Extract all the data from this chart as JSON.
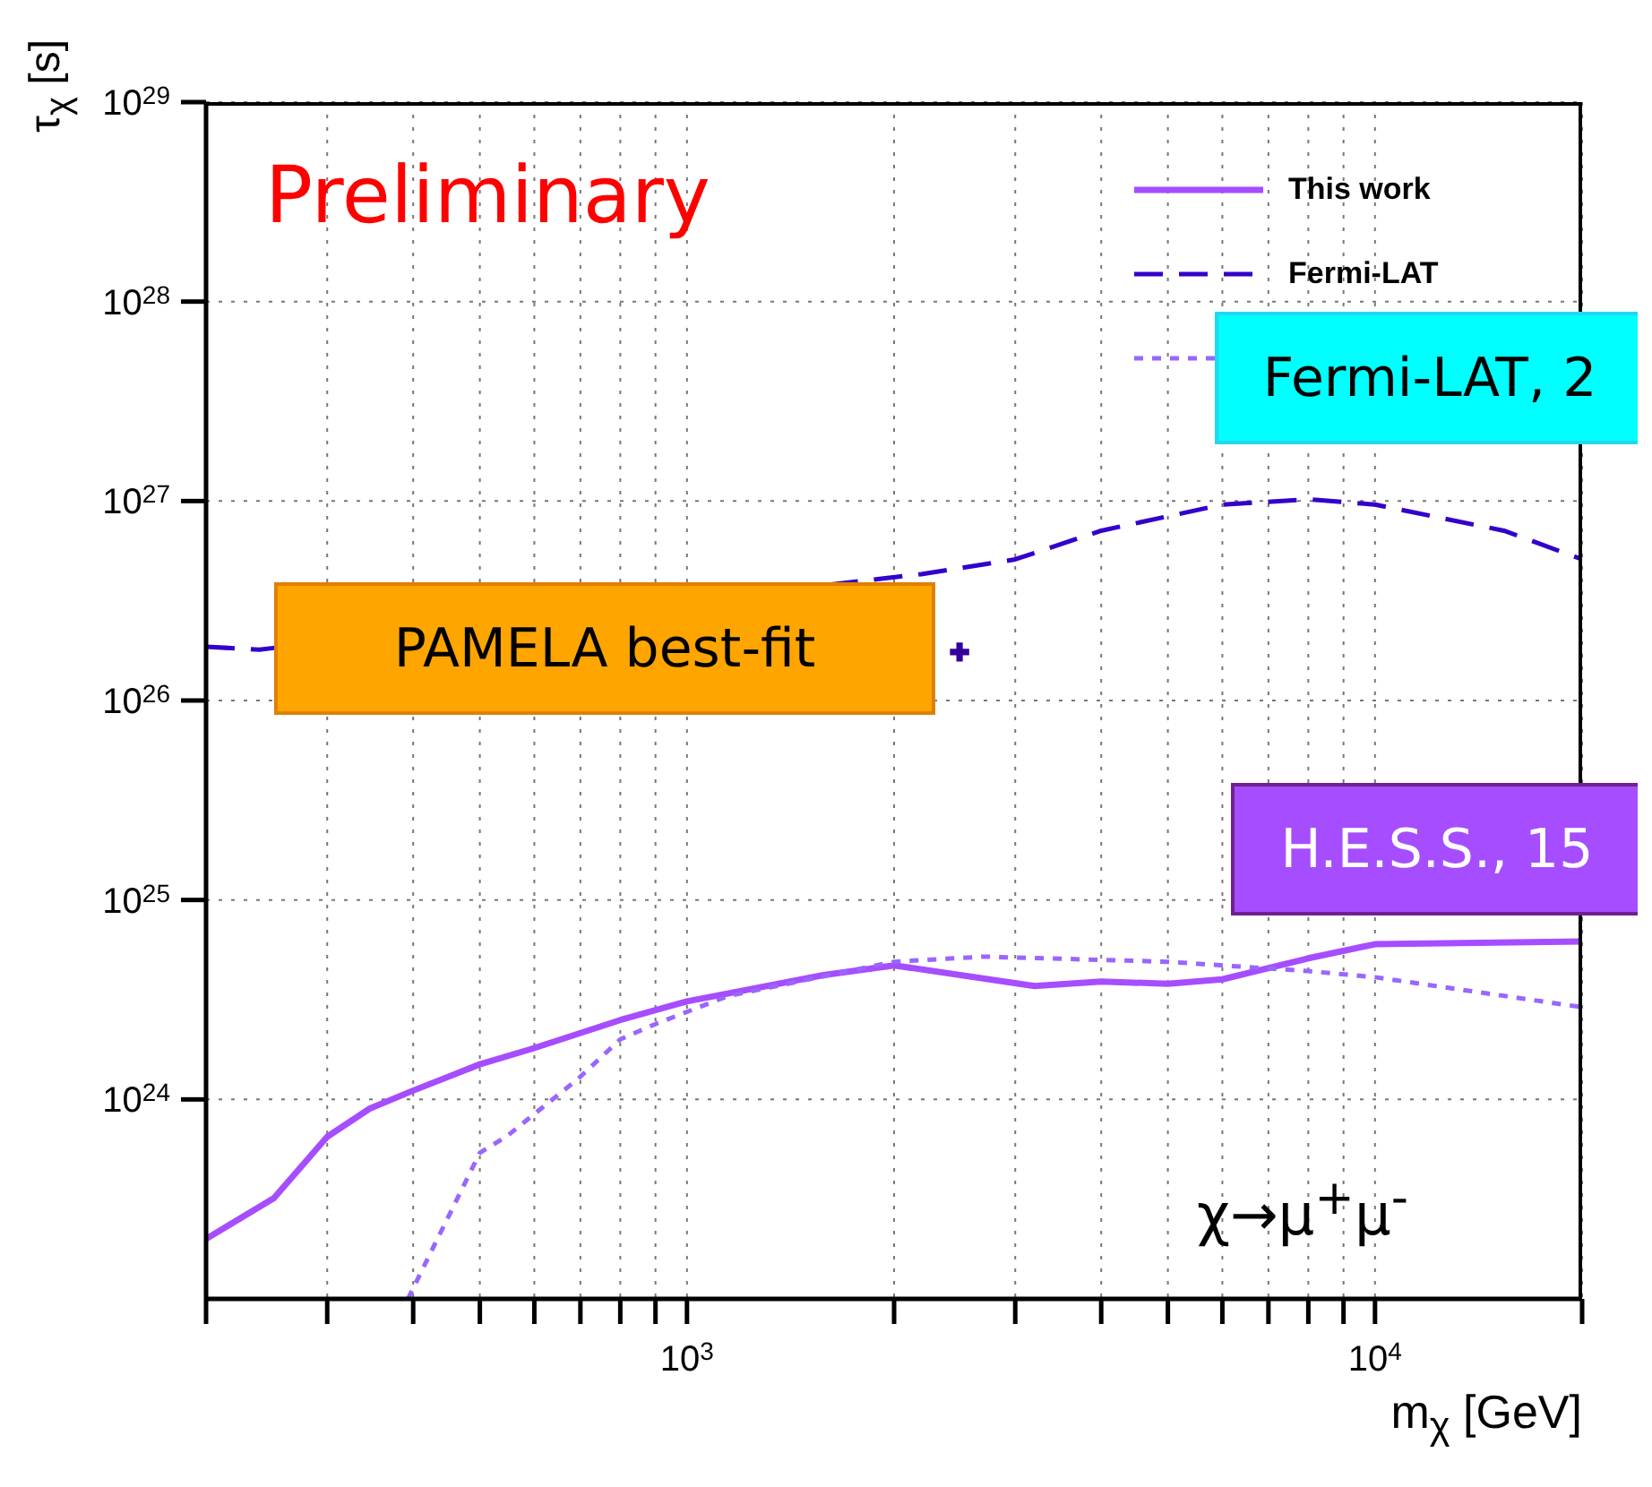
{
  "chart_data": {
    "type": "line",
    "xlabel": "m$_{χ}$ [GeV]",
    "ylabel": "τ$_{χ}$ [s]",
    "log": "xy",
    "grid": true,
    "legend": "top right",
    "xlim": [
      200,
      20000
    ],
    "ylim": [
      1e+23,
      1e+29
    ],
    "xticks": [
      {
        "value": 200,
        "label": null
      },
      {
        "value": 300,
        "label": null
      },
      {
        "value": 400,
        "label": null
      },
      {
        "value": 500,
        "label": null
      },
      {
        "value": 600,
        "label": null
      },
      {
        "value": 700,
        "label": null
      },
      {
        "value": 800,
        "label": null
      },
      {
        "value": 900,
        "label": null
      },
      {
        "value": 1000,
        "label": "10$^{3}$"
      },
      {
        "value": 2000,
        "label": null
      },
      {
        "value": 3000,
        "label": null
      },
      {
        "value": 4000,
        "label": null
      },
      {
        "value": 5000,
        "label": null
      },
      {
        "value": 6000,
        "label": null
      },
      {
        "value": 7000,
        "label": null
      },
      {
        "value": 8000,
        "label": null
      },
      {
        "value": 9000,
        "label": null
      },
      {
        "value": 10000,
        "label": "10$^{4}$"
      },
      {
        "value": 20000,
        "label": null
      }
    ],
    "yticks": [
      {
        "value": 1e+24,
        "label": "10$^{24}$"
      },
      {
        "value": 1e+25,
        "label": "10$^{25}$"
      },
      {
        "value": 1e+26,
        "label": "10$^{26}$"
      },
      {
        "value": 1e+27,
        "label": "10$^{27}$"
      },
      {
        "value": 1e+28,
        "label": "10$^{28}$"
      },
      {
        "value": 1e+29,
        "label": "10$^{29}$"
      }
    ],
    "series": [
      {
        "name": "This work",
        "color": "#a64dff",
        "line_style": "solid",
        "marker": "none",
        "x": [
          200,
          251,
          300,
          346,
          398,
          500,
          597,
          800,
          1000,
          1580,
          2000,
          3200,
          4000,
          5000,
          6000,
          8000,
          10000,
          20000
        ],
        "values": [
          2e+23,
          3.2e+23,
          6.5e+23,
          9e+23,
          1.1e+24,
          1.5e+24,
          1.8e+24,
          2.5e+24,
          3.1e+24,
          4.2e+24,
          4.7e+24,
          3.7e+24,
          3.9e+24,
          3.8e+24,
          4e+24,
          5.1e+24,
          6e+24,
          6.2e+24
        ]
      },
      {
        "name": "Fermi-LAT",
        "color": "#3300cc",
        "line_style": "dashed",
        "marker": "none",
        "x": [
          200,
          239,
          2190,
          3000,
          4000,
          6000,
          8000,
          10000,
          15400,
          20000
        ],
        "values": [
          1.86e+26,
          1.8e+26,
          4.3e+26,
          5.1e+26,
          7.1e+26,
          9.6e+26,
          1.02e+27,
          9.6e+26,
          7.1e+26,
          5.1e+26
        ]
      },
      {
        "color": "#9966ff",
        "line_style": "dotted",
        "marker": "none",
        "x": [
          393,
          500,
          546,
          693,
          800,
          903,
          1148,
          2000,
          2700,
          5000,
          8000,
          10000,
          20000
        ],
        "values": [
          1e+23,
          5.4e+23,
          6.5e+23,
          1.26e+24,
          2e+24,
          2.4e+24,
          3.3e+24,
          4.9e+24,
          5.2e+24,
          4.9e+24,
          4.4e+24,
          4.1e+24,
          2.9e+24
        ]
      },
      {
        "type": "scatter",
        "color": "#330099",
        "marker": "cross",
        "x": [
          2490
        ],
        "values": [
          1.75e+26
        ]
      }
    ],
    "annotations": [
      "Preliminary",
      "PAMELA best-fit",
      "Fermi-LAT, 2",
      "H.E.S.S., 15",
      "χ→μ$^{+}$μ$^{-}$"
    ]
  }
}
